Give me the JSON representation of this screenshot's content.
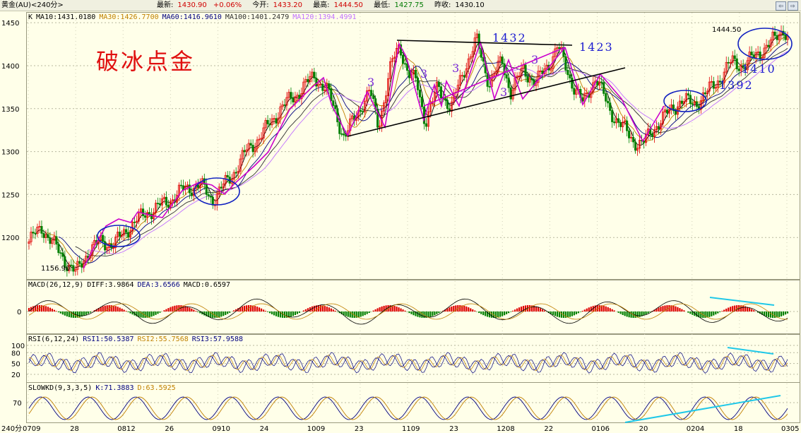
{
  "titlebar": {
    "symbol": "黄金(AU)<240分>",
    "last_label": "最新:",
    "last": "1430.90",
    "change": "+0.06%",
    "open_label": "今开:",
    "open": "1433.20",
    "high_label": "最高:",
    "high": "1444.50",
    "low_label": "最低:",
    "low": "1427.75",
    "prev_label": "昨收:",
    "prev": "1430.10"
  },
  "nav": [
    "⇦",
    "⇨"
  ],
  "main_legend": {
    "k": "K",
    "ma10": "MA10:1431.0180",
    "ma30": "MA30:1426.7700",
    "ma60": "MA60:1416.9610",
    "ma100": "MA100:1401.2479",
    "ma120": "MA120:1394.4991"
  },
  "macd_legend": {
    "name": "MACD(26,12,9)",
    "diff": "DIFF:3.9864",
    "dea": "DEA:3.6566",
    "macd": "MACD:0.6597"
  },
  "rsi_legend": {
    "name": "RSI(6,12,24)",
    "rsi1": "RSI1:50.5387",
    "rsi2": "RSI2:55.7568",
    "rsi3": "RSI3:57.9588"
  },
  "kd_legend": {
    "name": "SLOWKD(9,3,3,5)",
    "k": "K:71.3883",
    "d": "D:63.5925"
  },
  "title_overlay": "破冰点金",
  "period_label": "240分",
  "annotations": {
    "low": "1156.90",
    "high_label": "1444.50",
    "n1432": "1432",
    "n1423": "1423",
    "n1410": "1410",
    "n1392": "1392",
    "threes": [
      "3",
      "3",
      "3",
      "3",
      "3"
    ]
  },
  "colors": {
    "bg": "#ffffe9",
    "up": "#e00000",
    "down": "#008000",
    "ma10": "#000000",
    "ma30": "#c08000",
    "ma60": "#000080",
    "ma100": "#303030",
    "ma120": "#c070ff",
    "wave": "#cc00cc",
    "ellipse": "#1020c0",
    "div_line": "#20c8e8"
  },
  "chart_data": {
    "type": "candlestick",
    "y_ticks": [
      1200,
      1250,
      1300,
      1350,
      1400,
      1450
    ],
    "ylim": [
      1150,
      1460
    ],
    "x_ticks": [
      "0709",
      "28",
      "0812",
      "26",
      "0910",
      "24",
      "1009",
      "23",
      "1109",
      "23",
      "1208",
      "22",
      "0106",
      "20",
      "0204",
      "18",
      "0305"
    ],
    "close_path": [
      [
        0,
        1195
      ],
      [
        3,
        1212
      ],
      [
        6,
        1190
      ],
      [
        9,
        1170
      ],
      [
        11,
        1158
      ],
      [
        14,
        1185
      ],
      [
        17,
        1195
      ],
      [
        20,
        1192
      ],
      [
        24,
        1215
      ],
      [
        28,
        1230
      ],
      [
        32,
        1240
      ],
      [
        36,
        1255
      ],
      [
        40,
        1262
      ],
      [
        43,
        1244
      ],
      [
        47,
        1268
      ],
      [
        51,
        1300
      ],
      [
        55,
        1322
      ],
      [
        59,
        1350
      ],
      [
        63,
        1368
      ],
      [
        67,
        1388
      ],
      [
        70,
        1370
      ],
      [
        72,
        1345
      ],
      [
        74,
        1315
      ],
      [
        77,
        1345
      ],
      [
        80,
        1370
      ],
      [
        82,
        1330
      ],
      [
        85,
        1400
      ],
      [
        87,
        1425
      ],
      [
        89,
        1390
      ],
      [
        91,
        1380
      ],
      [
        93,
        1335
      ],
      [
        96,
        1375
      ],
      [
        99,
        1350
      ],
      [
        102,
        1395
      ],
      [
        105,
        1429
      ],
      [
        108,
        1380
      ],
      [
        111,
        1405
      ],
      [
        113,
        1370
      ],
      [
        116,
        1395
      ],
      [
        119,
        1380
      ],
      [
        122,
        1402
      ],
      [
        124,
        1423
      ],
      [
        127,
        1385
      ],
      [
        130,
        1355
      ],
      [
        133,
        1388
      ],
      [
        136,
        1350
      ],
      [
        139,
        1330
      ],
      [
        142,
        1312
      ],
      [
        144,
        1308
      ],
      [
        147,
        1330
      ],
      [
        150,
        1345
      ],
      [
        153,
        1360
      ],
      [
        156,
        1355
      ],
      [
        159,
        1368
      ],
      [
        162,
        1385
      ],
      [
        165,
        1405
      ],
      [
        168,
        1400
      ],
      [
        171,
        1415
      ],
      [
        174,
        1425
      ],
      [
        177,
        1444.5
      ],
      [
        178,
        1431
      ]
    ],
    "macd": {
      "range": [
        -30,
        30
      ],
      "zero_ticks": [
        0
      ]
    },
    "rsi": {
      "ticks": [
        100,
        80,
        50,
        20
      ]
    },
    "kd": {
      "ticks": [
        70
      ]
    }
  }
}
